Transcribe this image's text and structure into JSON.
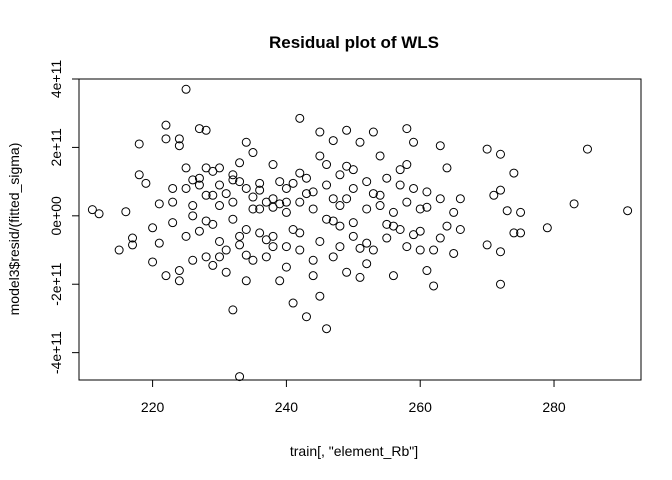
{
  "chart_data": {
    "type": "scatter",
    "title": "Residual plot of WLS",
    "xlabel": "train[, \"element_Rb\"]",
    "ylabel": "model3$resid/(fitted_sigma)",
    "xlim": [
      209,
      293
    ],
    "ylim": [
      -480000000000.0,
      400000000000.0
    ],
    "x_ticks": [
      220,
      240,
      260,
      280
    ],
    "x_tick_labels": [
      "220",
      "240",
      "260",
      "280"
    ],
    "y_ticks": [
      -400000000000.0,
      -200000000000.0,
      0,
      200000000000.0,
      400000000000.0
    ],
    "y_tick_labels": [
      "-4e+11",
      "-2e+11",
      "0e+00",
      "2e+11",
      "4e+11"
    ],
    "grid": false,
    "legend": "none",
    "marker": "open-circle",
    "points": [
      [
        211,
        18000000000.0
      ],
      [
        212,
        6000000000.0
      ],
      [
        215,
        -100000000000.0
      ],
      [
        216,
        12000000000.0
      ],
      [
        217,
        -65000000000.0
      ],
      [
        217,
        -85000000000.0
      ],
      [
        218,
        210000000000.0
      ],
      [
        218,
        120000000000.0
      ],
      [
        219,
        95000000000.0
      ],
      [
        220,
        -35000000000.0
      ],
      [
        220,
        -135000000000.0
      ],
      [
        221,
        35000000000.0
      ],
      [
        222,
        265000000000.0
      ],
      [
        222,
        225000000000.0
      ],
      [
        222,
        -175000000000.0
      ],
      [
        223,
        80000000000.0
      ],
      [
        223,
        -20000000000.0
      ],
      [
        224,
        225000000000.0
      ],
      [
        224,
        205000000000.0
      ],
      [
        224,
        -160000000000.0
      ],
      [
        224,
        -190000000000.0
      ],
      [
        225,
        370000000000.0
      ],
      [
        225,
        140000000000.0
      ],
      [
        225,
        80000000000.0
      ],
      [
        226,
        30000000000.0
      ],
      [
        226,
        0
      ],
      [
        226,
        -130000000000.0
      ],
      [
        227,
        255000000000.0
      ],
      [
        227,
        110000000000.0
      ],
      [
        227,
        -45000000000.0
      ],
      [
        228,
        250000000000.0
      ],
      [
        228,
        140000000000.0
      ],
      [
        228,
        -120000000000.0
      ],
      [
        229,
        130000000000.0
      ],
      [
        229,
        60000000000.0
      ],
      [
        229,
        -145000000000.0
      ],
      [
        230,
        140000000000.0
      ],
      [
        230,
        90000000000.0
      ],
      [
        230,
        -75000000000.0
      ],
      [
        231,
        -165000000000.0
      ],
      [
        231,
        -100000000000.0
      ],
      [
        232,
        120000000000.0
      ],
      [
        232,
        40000000000.0
      ],
      [
        232,
        -275000000000.0
      ],
      [
        233,
        155000000000.0
      ],
      [
        233,
        100000000000.0
      ],
      [
        233,
        -470000000000.0
      ],
      [
        233,
        -60000000000.0
      ],
      [
        234,
        215000000000.0
      ],
      [
        234,
        80000000000.0
      ],
      [
        234,
        -190000000000.0
      ],
      [
        235,
        185000000000.0
      ],
      [
        235,
        20000000000.0
      ],
      [
        235,
        -130000000000.0
      ],
      [
        236,
        95000000000.0
      ],
      [
        236,
        -50000000000.0
      ],
      [
        237,
        40000000000.0
      ],
      [
        237,
        -120000000000.0
      ],
      [
        238,
        150000000000.0
      ],
      [
        238,
        50000000000.0
      ],
      [
        238,
        -90000000000.0
      ],
      [
        239,
        100000000000.0
      ],
      [
        239,
        -190000000000.0
      ],
      [
        240,
        80000000000.0
      ],
      [
        240,
        10000000000.0
      ],
      [
        240,
        -150000000000.0
      ],
      [
        241,
        95000000000.0
      ],
      [
        241,
        -255000000000.0
      ],
      [
        242,
        285000000000.0
      ],
      [
        242,
        40000000000.0
      ],
      [
        242,
        -100000000000.0
      ],
      [
        243,
        110000000000.0
      ],
      [
        243,
        -295000000000.0
      ],
      [
        244,
        20000000000.0
      ],
      [
        244,
        -175000000000.0
      ],
      [
        245,
        245000000000.0
      ],
      [
        245,
        175000000000.0
      ],
      [
        245,
        -235000000000.0
      ],
      [
        246,
        150000000000.0
      ],
      [
        246,
        -330000000000.0
      ],
      [
        247,
        220000000000.0
      ],
      [
        247,
        50000000000.0
      ],
      [
        247,
        -120000000000.0
      ],
      [
        248,
        120000000000.0
      ],
      [
        248,
        -30000000000.0
      ],
      [
        249,
        250000000000.0
      ],
      [
        249,
        145000000000.0
      ],
      [
        249,
        -165000000000.0
      ],
      [
        250,
        80000000000.0
      ],
      [
        250,
        -60000000000.0
      ],
      [
        251,
        215000000000.0
      ],
      [
        251,
        -180000000000.0
      ],
      [
        252,
        100000000000.0
      ],
      [
        252,
        20000000000.0
      ],
      [
        253,
        245000000000.0
      ],
      [
        253,
        -100000000000.0
      ],
      [
        254,
        175000000000.0
      ],
      [
        254,
        30000000000.0
      ],
      [
        255,
        110000000000.0
      ],
      [
        255,
        -65000000000.0
      ],
      [
        256,
        -175000000000.0
      ],
      [
        256,
        10000000000.0
      ],
      [
        257,
        135000000000.0
      ],
      [
        257,
        -40000000000.0
      ],
      [
        258,
        255000000000.0
      ],
      [
        258,
        150000000000.0
      ],
      [
        258,
        -90000000000.0
      ],
      [
        259,
        215000000000.0
      ],
      [
        259,
        80000000000.0
      ],
      [
        260,
        20000000000.0
      ],
      [
        260,
        -45000000000.0
      ],
      [
        261,
        70000000000.0
      ],
      [
        261,
        -160000000000.0
      ],
      [
        262,
        -205000000000.0
      ],
      [
        262,
        -100000000000.0
      ],
      [
        263,
        205000000000.0
      ],
      [
        263,
        50000000000.0
      ],
      [
        264,
        140000000000.0
      ],
      [
        264,
        -30000000000.0
      ],
      [
        265,
        -110000000000.0
      ],
      [
        265,
        10000000000.0
      ],
      [
        266,
        50000000000.0
      ],
      [
        266,
        -40000000000.0
      ],
      [
        270,
        195000000000.0
      ],
      [
        270,
        -85000000000.0
      ],
      [
        271,
        60000000000.0
      ],
      [
        272,
        180000000000.0
      ],
      [
        272,
        75000000000.0
      ],
      [
        272,
        -105000000000.0
      ],
      [
        272,
        -200000000000.0
      ],
      [
        273,
        15000000000.0
      ],
      [
        274,
        125000000000.0
      ],
      [
        274,
        -50000000000.0
      ],
      [
        275,
        10000000000.0
      ],
      [
        275,
        -50000000000.0
      ],
      [
        279,
        -35000000000.0
      ],
      [
        283,
        35000000000.0
      ],
      [
        285,
        195000000000.0
      ],
      [
        291,
        15000000000.0
      ],
      [
        228,
        60000000000.0
      ],
      [
        230,
        30000000000.0
      ],
      [
        232,
        -10000000000.0
      ],
      [
        234,
        -40000000000.0
      ],
      [
        236,
        20000000000.0
      ],
      [
        238,
        -60000000000.0
      ],
      [
        240,
        40000000000.0
      ],
      [
        242,
        -50000000000.0
      ],
      [
        244,
        70000000000.0
      ],
      [
        246,
        -10000000000.0
      ],
      [
        248,
        30000000000.0
      ],
      [
        250,
        -20000000000.0
      ],
      [
        252,
        -80000000000.0
      ],
      [
        254,
        60000000000.0
      ],
      [
        256,
        -30000000000.0
      ],
      [
        258,
        40000000000.0
      ],
      [
        260,
        -100000000000.0
      ],
      [
        221,
        -80000000000.0
      ],
      [
        223,
        40000000000.0
      ],
      [
        225,
        -60000000000.0
      ],
      [
        227,
        90000000000.0
      ],
      [
        229,
        -25000000000.0
      ],
      [
        231,
        65000000000.0
      ],
      [
        233,
        -85000000000.0
      ],
      [
        235,
        55000000000.0
      ],
      [
        237,
        -70000000000.0
      ],
      [
        239,
        35000000000.0
      ],
      [
        241,
        -40000000000.0
      ],
      [
        243,
        65000000000.0
      ],
      [
        245,
        -75000000000.0
      ],
      [
        247,
        -15000000000.0
      ],
      [
        249,
        50000000000.0
      ],
      [
        251,
        -95000000000.0
      ],
      [
        253,
        65000000000.0
      ],
      [
        255,
        -25000000000.0
      ],
      [
        257,
        90000000000.0
      ],
      [
        259,
        -55000000000.0
      ],
      [
        261,
        25000000000.0
      ],
      [
        263,
        -65000000000.0
      ],
      [
        226,
        105000000000.0
      ],
      [
        228,
        -15000000000.0
      ],
      [
        230,
        -120000000000.0
      ],
      [
        232,
        105000000000.0
      ],
      [
        234,
        -115000000000.0
      ],
      [
        236,
        75000000000.0
      ],
      [
        238,
        25000000000.0
      ],
      [
        240,
        -90000000000.0
      ],
      [
        242,
        125000000000.0
      ],
      [
        244,
        -130000000000.0
      ],
      [
        246,
        90000000000.0
      ],
      [
        248,
        -90000000000.0
      ],
      [
        250,
        135000000000.0
      ],
      [
        252,
        -140000000000.0
      ]
    ]
  }
}
